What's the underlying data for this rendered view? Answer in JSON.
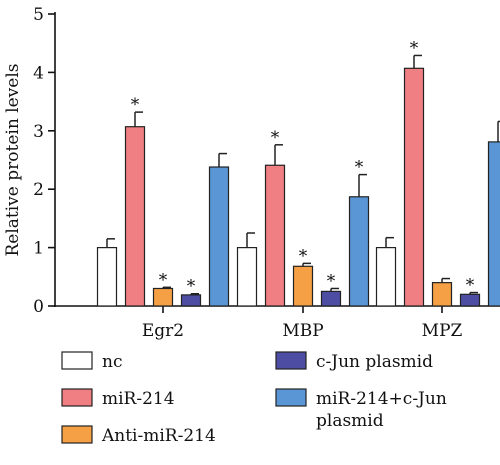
{
  "chart_data": {
    "type": "bar",
    "ylabel": "Relative protein levels",
    "xlabel": "",
    "ylim": [
      0,
      5
    ],
    "yticks": [
      "0",
      "1",
      "2",
      "3",
      "4",
      "5"
    ],
    "categories": [
      "Egr2",
      "MBP",
      "MPZ"
    ],
    "series": [
      {
        "name": "nc",
        "color": "#ffffff",
        "values": [
          1.0,
          1.0,
          1.0
        ],
        "errors": [
          0.15,
          0.25,
          0.17
        ],
        "sig": [
          false,
          false,
          false
        ]
      },
      {
        "name": "miR-214",
        "color": "#f07f83",
        "values": [
          3.07,
          2.41,
          4.07
        ],
        "errors": [
          0.25,
          0.35,
          0.22
        ],
        "sig": [
          true,
          true,
          true
        ]
      },
      {
        "name": "Anti-miR-214",
        "color": "#f6a045",
        "values": [
          0.3,
          0.68,
          0.4
        ],
        "errors": [
          0.02,
          0.05,
          0.07
        ],
        "sig": [
          true,
          true,
          false
        ]
      },
      {
        "name": "c-Jun plasmid",
        "color": "#4d4ea3",
        "values": [
          0.19,
          0.25,
          0.2
        ],
        "errors": [
          0.02,
          0.05,
          0.03
        ],
        "sig": [
          true,
          true,
          true
        ]
      },
      {
        "name": "miR-214+c-Jun plasmid",
        "color": "#5a96d6",
        "values": [
          2.38,
          1.87,
          2.81
        ],
        "errors": [
          0.23,
          0.38,
          0.35
        ],
        "sig": [
          false,
          true,
          false
        ]
      }
    ],
    "significance_marker": "*",
    "legend": {
      "placement": "bottom",
      "entries": [
        {
          "label": "nc"
        },
        {
          "label": "miR-214"
        },
        {
          "label": "Anti-miR-214"
        },
        {
          "label": "c-Jun plasmid"
        },
        {
          "label": "miR-214+c-Jun plasmid",
          "lines": [
            "miR-214+c-Jun",
            "plasmid"
          ]
        }
      ]
    }
  }
}
